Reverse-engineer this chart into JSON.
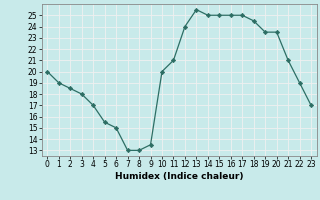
{
  "x": [
    0,
    1,
    2,
    3,
    4,
    5,
    6,
    7,
    8,
    9,
    10,
    11,
    12,
    13,
    14,
    15,
    16,
    17,
    18,
    19,
    20,
    21,
    22,
    23
  ],
  "y": [
    20,
    19,
    18.5,
    18,
    17,
    15.5,
    15,
    13,
    13,
    13.5,
    20,
    21,
    24,
    25.5,
    25,
    25,
    25,
    25,
    24.5,
    23.5,
    23.5,
    21,
    19,
    17
  ],
  "xlabel": "Humidex (Indice chaleur)",
  "xlim": [
    -0.5,
    23.5
  ],
  "ylim": [
    12.5,
    26.0
  ],
  "yticks": [
    13,
    14,
    15,
    16,
    17,
    18,
    19,
    20,
    21,
    22,
    23,
    24,
    25
  ],
  "xticks": [
    0,
    1,
    2,
    3,
    4,
    5,
    6,
    7,
    8,
    9,
    10,
    11,
    12,
    13,
    14,
    15,
    16,
    17,
    18,
    19,
    20,
    21,
    22,
    23
  ],
  "line_color": "#2d6e64",
  "bg_color": "#c8eaea",
  "grid_color": "#f0f0f0",
  "tick_fontsize": 5.5,
  "label_fontsize": 6.5
}
